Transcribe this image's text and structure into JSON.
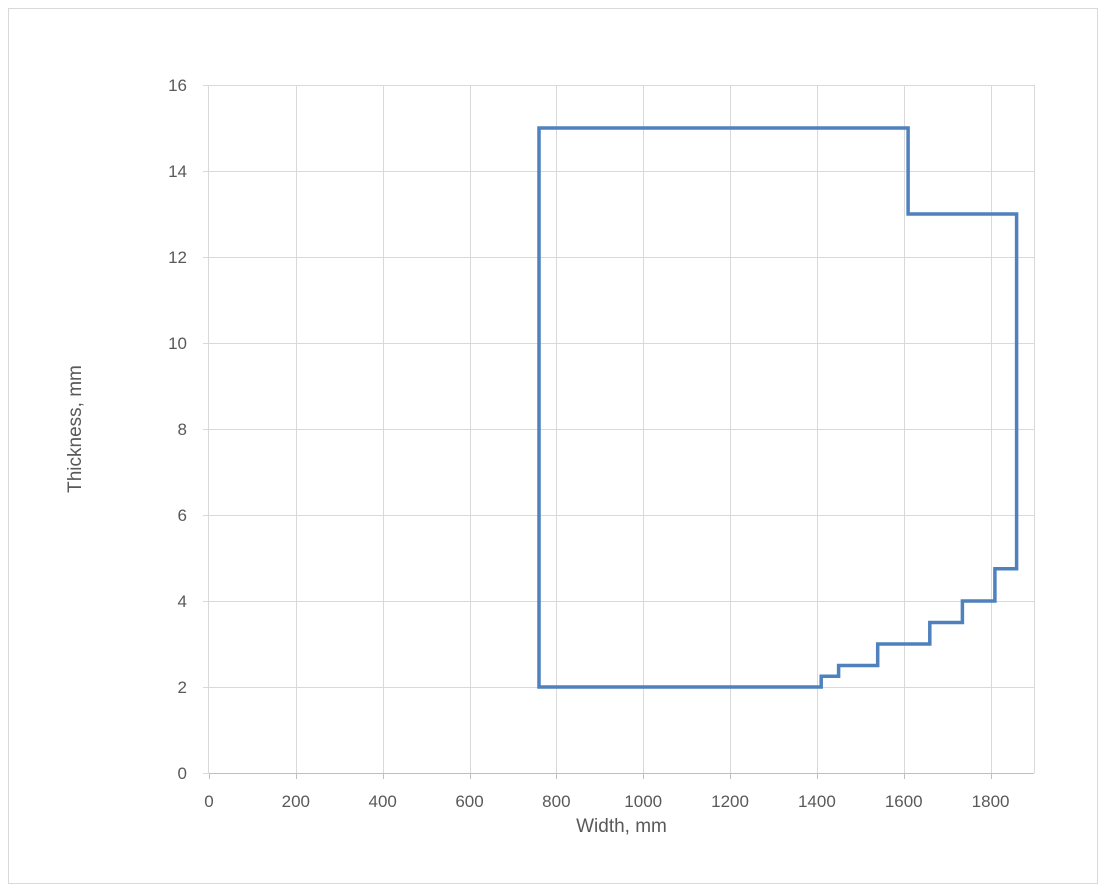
{
  "chart_data": {
    "type": "line",
    "title": "",
    "xlabel": "Width, mm",
    "ylabel": "Thickness, mm",
    "xlim": [
      0,
      1900
    ],
    "ylim": [
      0,
      16
    ],
    "x_ticks": [
      0,
      200,
      400,
      600,
      800,
      1000,
      1200,
      1400,
      1600,
      1800
    ],
    "y_ticks": [
      0,
      2,
      4,
      6,
      8,
      10,
      12,
      14,
      16
    ],
    "grid": true,
    "legend": "none",
    "series": [
      {
        "color": "#4f81bd",
        "points": [
          {
            "x": 760,
            "y": 2
          },
          {
            "x": 760,
            "y": 15
          },
          {
            "x": 1610,
            "y": 15
          },
          {
            "x": 1610,
            "y": 13
          },
          {
            "x": 1860,
            "y": 13
          },
          {
            "x": 1860,
            "y": 4.75
          },
          {
            "x": 1810,
            "y": 4.75
          },
          {
            "x": 1810,
            "y": 4
          },
          {
            "x": 1735,
            "y": 4
          },
          {
            "x": 1735,
            "y": 3.5
          },
          {
            "x": 1660,
            "y": 3.5
          },
          {
            "x": 1660,
            "y": 3
          },
          {
            "x": 1540,
            "y": 3
          },
          {
            "x": 1540,
            "y": 2.5
          },
          {
            "x": 1450,
            "y": 2.5
          },
          {
            "x": 1450,
            "y": 2.25
          },
          {
            "x": 1410,
            "y": 2.25
          },
          {
            "x": 1410,
            "y": 2
          },
          {
            "x": 760,
            "y": 2
          }
        ]
      }
    ]
  }
}
